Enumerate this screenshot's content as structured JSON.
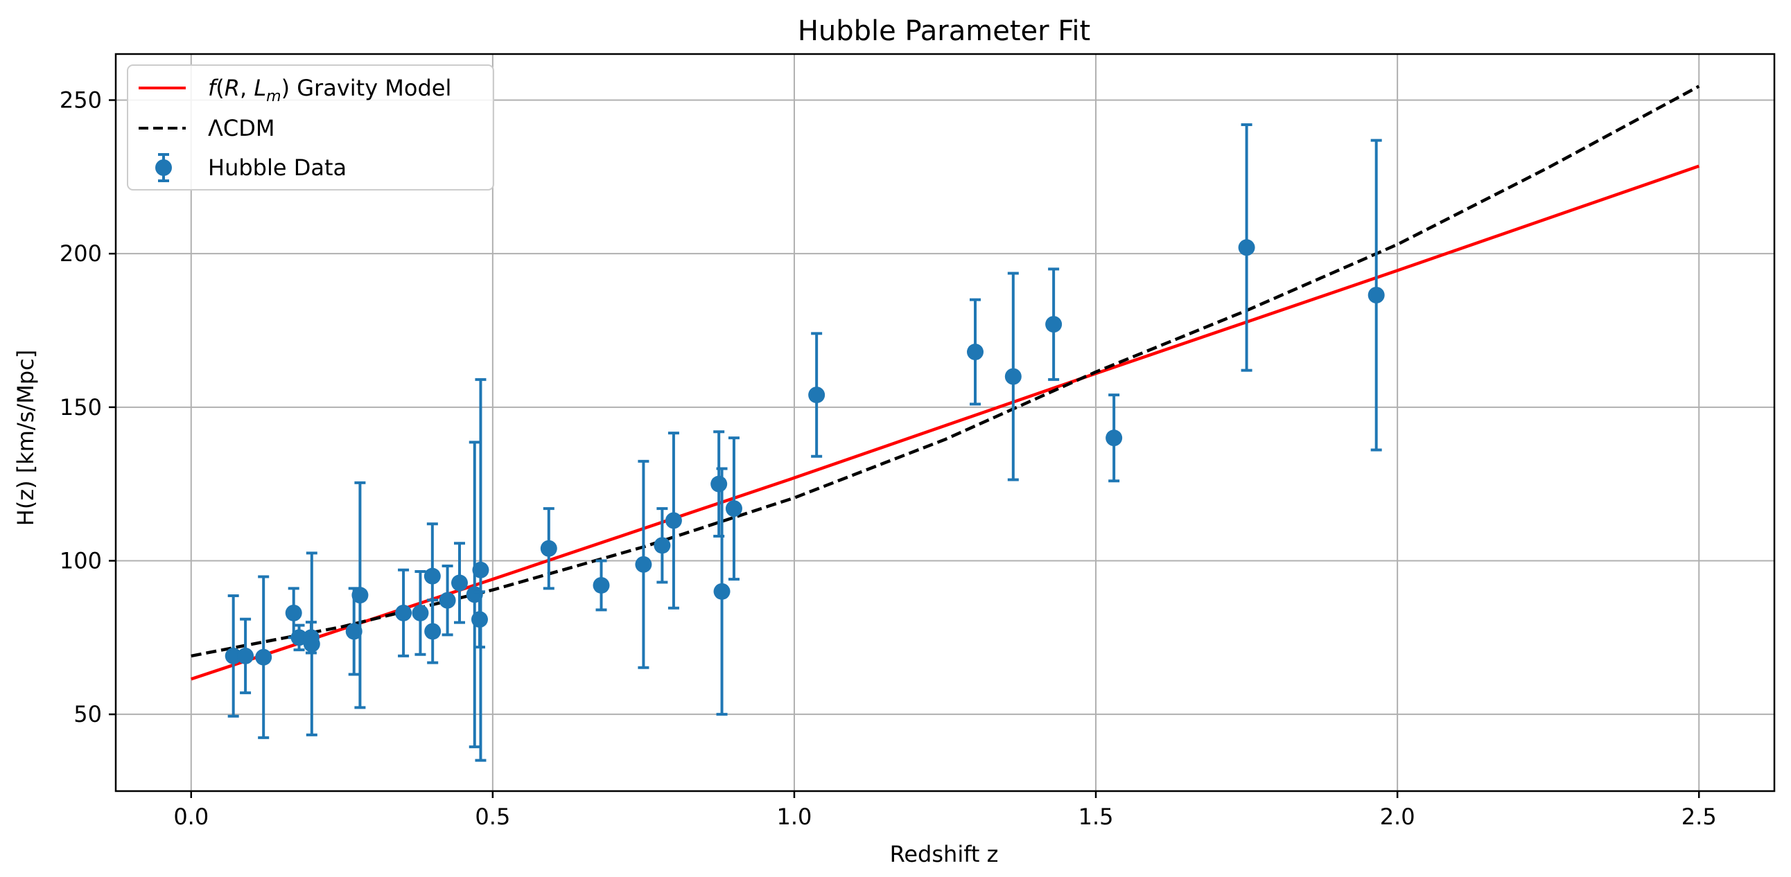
{
  "chart_data": {
    "type": "scatter",
    "title": "Hubble Parameter Fit",
    "xlabel": "Redshift z",
    "ylabel": "H(z) [km/s/Mpc]",
    "xlim": [
      -0.125,
      2.625
    ],
    "ylim": [
      25,
      265
    ],
    "x_ticks": [
      0.0,
      0.5,
      1.0,
      1.5,
      2.0,
      2.5
    ],
    "x_tick_labels": [
      "0.0",
      "0.5",
      "1.0",
      "1.5",
      "2.0",
      "2.5"
    ],
    "y_ticks": [
      50,
      100,
      150,
      200,
      250
    ],
    "y_tick_labels": [
      "50",
      "100",
      "150",
      "200",
      "250"
    ],
    "grid": true,
    "legend_position": "top-left",
    "series": [
      {
        "name": "f(R, L_m) Gravity Model",
        "kind": "line",
        "style": "solid",
        "color": "#ff0000",
        "x": [
          0.0,
          0.5,
          1.0,
          1.5,
          2.0,
          2.5
        ],
        "y": [
          61.5,
          94.0,
          127.0,
          161.0,
          194.5,
          228.5
        ]
      },
      {
        "name": "ΛCDM",
        "kind": "line",
        "style": "dashed",
        "color": "#000000",
        "x": [
          0.0,
          0.25,
          0.5,
          0.75,
          1.0,
          1.25,
          1.5,
          1.75,
          2.0,
          2.25,
          2.5
        ],
        "y": [
          69.0,
          78.5,
          90.5,
          104.5,
          120.5,
          139.5,
          161.5,
          181.5,
          203.0,
          228.0,
          254.5
        ]
      },
      {
        "name": "Hubble Data",
        "kind": "errorbar",
        "color": "#1f77b4",
        "points": [
          {
            "x": 0.07,
            "y": 69.0,
            "err": 19.6
          },
          {
            "x": 0.09,
            "y": 69.0,
            "err": 12.0
          },
          {
            "x": 0.12,
            "y": 68.6,
            "err": 26.2
          },
          {
            "x": 0.17,
            "y": 83.0,
            "err": 8.0
          },
          {
            "x": 0.179,
            "y": 75.0,
            "err": 4.0
          },
          {
            "x": 0.199,
            "y": 75.0,
            "err": 5.0
          },
          {
            "x": 0.2,
            "y": 72.9,
            "err": 29.6
          },
          {
            "x": 0.27,
            "y": 77.0,
            "err": 14.0
          },
          {
            "x": 0.28,
            "y": 88.8,
            "err": 36.6
          },
          {
            "x": 0.352,
            "y": 83.0,
            "err": 14.0
          },
          {
            "x": 0.38,
            "y": 83.0,
            "err": 13.5
          },
          {
            "x": 0.4,
            "y": 95.0,
            "err": 17.0
          },
          {
            "x": 0.4004,
            "y": 77.0,
            "err": 10.2
          },
          {
            "x": 0.425,
            "y": 87.1,
            "err": 11.2
          },
          {
            "x": 0.445,
            "y": 92.8,
            "err": 12.9
          },
          {
            "x": 0.47,
            "y": 89.0,
            "err": 49.6
          },
          {
            "x": 0.4783,
            "y": 80.9,
            "err": 9.0
          },
          {
            "x": 0.48,
            "y": 97.0,
            "err": 62.0
          },
          {
            "x": 0.593,
            "y": 104.0,
            "err": 13.0
          },
          {
            "x": 0.68,
            "y": 92.0,
            "err": 8.0
          },
          {
            "x": 0.75,
            "y": 98.8,
            "err": 33.6
          },
          {
            "x": 0.781,
            "y": 105.0,
            "err": 12.0
          },
          {
            "x": 0.8,
            "y": 113.1,
            "err": 28.5
          },
          {
            "x": 0.875,
            "y": 125.0,
            "err": 17.0
          },
          {
            "x": 0.88,
            "y": 90.0,
            "err": 40.0
          },
          {
            "x": 0.9,
            "y": 117.0,
            "err": 23.0
          },
          {
            "x": 1.037,
            "y": 154.0,
            "err": 20.0
          },
          {
            "x": 1.3,
            "y": 168.0,
            "err": 17.0
          },
          {
            "x": 1.363,
            "y": 160.0,
            "err": 33.6
          },
          {
            "x": 1.43,
            "y": 177.0,
            "err": 18.0
          },
          {
            "x": 1.53,
            "y": 140.0,
            "err": 14.0
          },
          {
            "x": 1.75,
            "y": 202.0,
            "err": 40.0
          },
          {
            "x": 1.965,
            "y": 186.5,
            "err": 50.4
          }
        ]
      }
    ]
  },
  "legend": {
    "items": [
      {
        "label": "f(R, L_m) Gravity Model"
      },
      {
        "label": "ΛCDM"
      },
      {
        "label": "Hubble Data"
      }
    ]
  }
}
